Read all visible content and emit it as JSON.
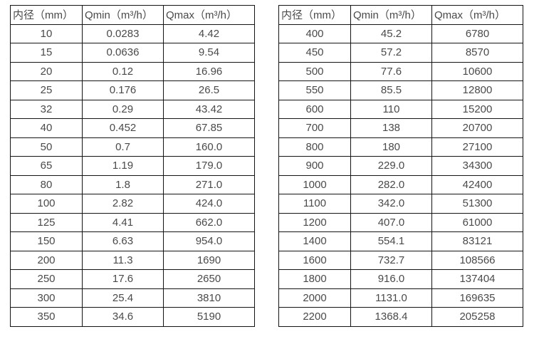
{
  "colors": {
    "border": "#141414",
    "text": "#4a4a4a",
    "background": "#ffffff"
  },
  "chart_data": [
    {
      "type": "table",
      "title": "",
      "columns": [
        "内径（mm）",
        "Qmin（m³/h）",
        "Qmax（m³/h）"
      ],
      "rows": [
        [
          "10",
          "0.0283",
          "4.42"
        ],
        [
          "15",
          "0.0636",
          "9.54"
        ],
        [
          "20",
          "0.12",
          "16.96"
        ],
        [
          "25",
          "0.176",
          "26.5"
        ],
        [
          "32",
          "0.29",
          "43.42"
        ],
        [
          "40",
          "0.452",
          "67.85"
        ],
        [
          "50",
          "0.7",
          "160.0"
        ],
        [
          "65",
          "1.19",
          "179.0"
        ],
        [
          "80",
          "1.8",
          "271.0"
        ],
        [
          "100",
          "2.82",
          "424.0"
        ],
        [
          "125",
          "4.41",
          "662.0"
        ],
        [
          "150",
          "6.63",
          "954.0"
        ],
        [
          "200",
          "11.3",
          "1690"
        ],
        [
          "250",
          "17.6",
          "2650"
        ],
        [
          "300",
          "25.4",
          "3810"
        ],
        [
          "350",
          "34.6",
          "5190"
        ]
      ]
    },
    {
      "type": "table",
      "title": "",
      "columns": [
        "内径（mm）",
        "Qmin（m³/h）",
        "Qmax（m³/h）"
      ],
      "rows": [
        [
          "400",
          "45.2",
          "6780"
        ],
        [
          "450",
          "57.2",
          "8570"
        ],
        [
          "500",
          "77.6",
          "10600"
        ],
        [
          "550",
          "85.5",
          "12800"
        ],
        [
          "600",
          "110",
          "15200"
        ],
        [
          "700",
          "138",
          "20700"
        ],
        [
          "800",
          "180",
          "27100"
        ],
        [
          "900",
          "229.0",
          "34300"
        ],
        [
          "1000",
          "282.0",
          "42400"
        ],
        [
          "1100",
          "342.0",
          "51300"
        ],
        [
          "1200",
          "407.0",
          "61000"
        ],
        [
          "1400",
          "554.1",
          "83121"
        ],
        [
          "1600",
          "732.7",
          "108566"
        ],
        [
          "1800",
          "916.0",
          "137404"
        ],
        [
          "2000",
          "1131.0",
          "169635"
        ],
        [
          "2200",
          "1368.4",
          "205258"
        ]
      ]
    }
  ]
}
